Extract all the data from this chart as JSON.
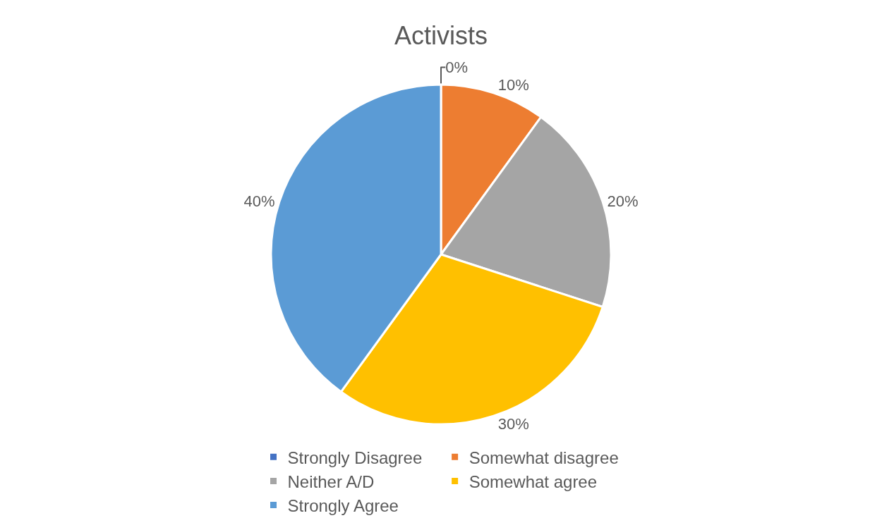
{
  "chart_data": {
    "type": "pie",
    "title": "Activists",
    "categories": [
      "Strongly Disagree",
      "Somewhat disagree",
      "Neither A/D",
      "Somewhat agree",
      "Strongly Agree"
    ],
    "values": [
      0,
      10,
      20,
      30,
      40
    ],
    "colors": [
      "#4472c4",
      "#ed7d31",
      "#a5a5a5",
      "#ffc000",
      "#5b9bd5"
    ],
    "value_labels": [
      "0%",
      "10%",
      "20%",
      "30%",
      "40%"
    ],
    "legend": "bottom"
  }
}
